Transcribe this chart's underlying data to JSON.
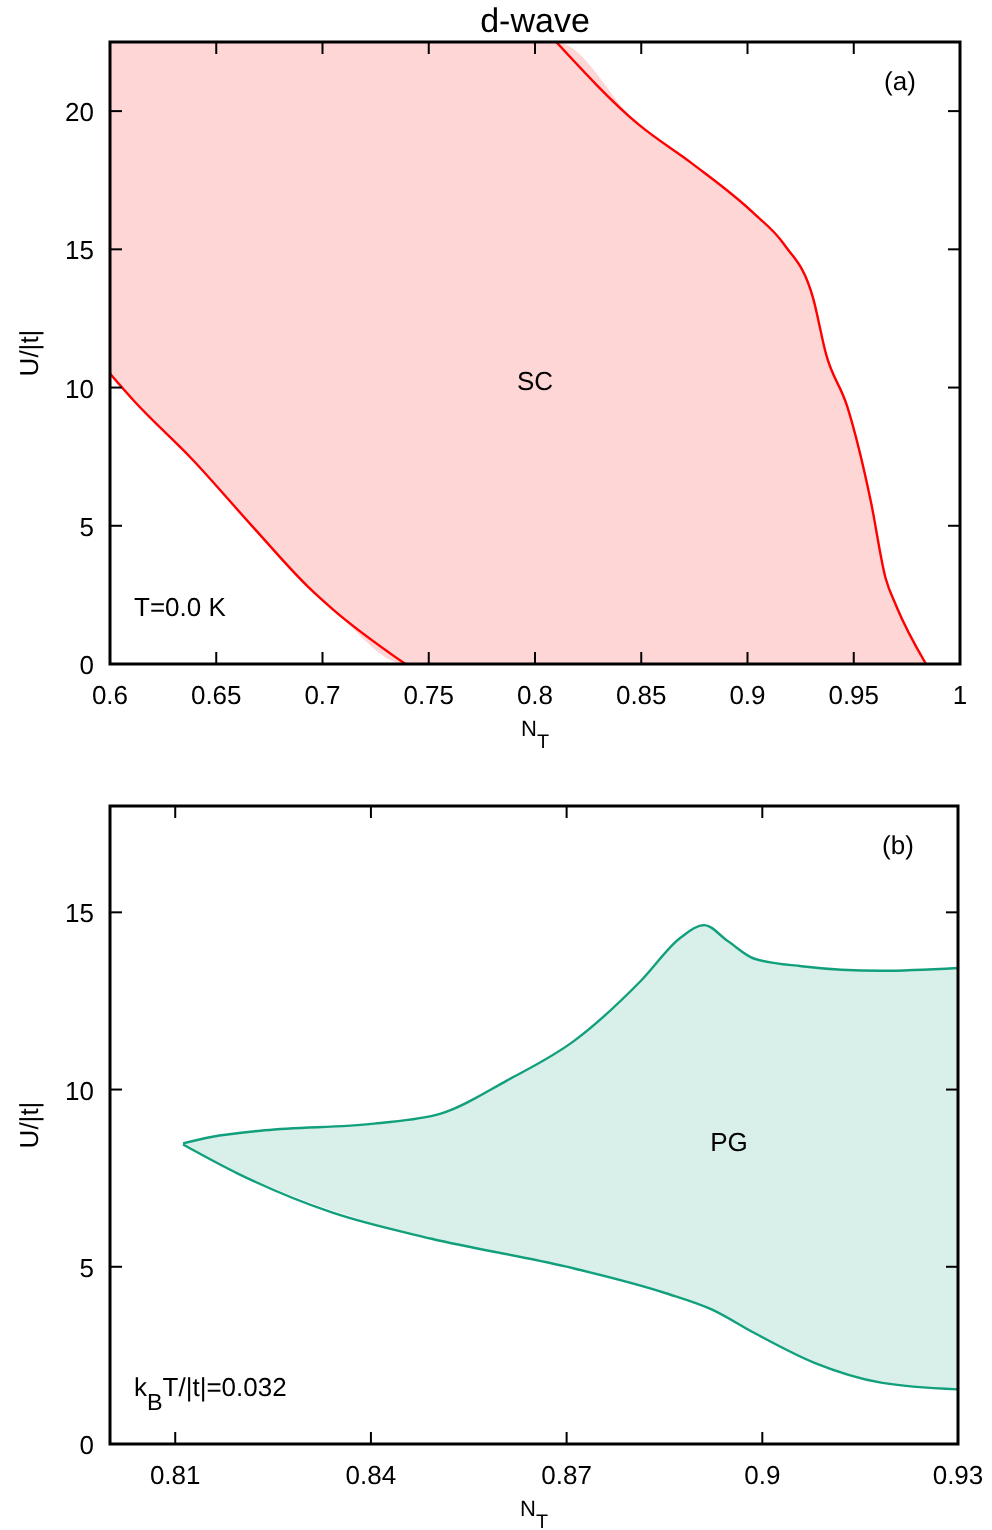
{
  "chart_data": [
    {
      "type": "line",
      "title": "d-wave",
      "xlabel": "N$_{T}$",
      "ylabel": "U/|t|",
      "xlim": [
        0.6,
        1
      ],
      "ylim": [
        0,
        22.5
      ],
      "xticks": [
        0.6,
        0.65,
        0.7,
        0.75,
        0.8,
        0.85,
        0.9,
        0.95,
        1
      ],
      "yticks": [
        0,
        5,
        10,
        15,
        20
      ],
      "grid": false,
      "annotations": [
        "(a)",
        "T=0.0 K",
        "SC"
      ],
      "series": [
        {
          "type": "line",
          "color": "#ff0000",
          "x": [
            0.6,
            0.611,
            0.639,
            0.667,
            0.693,
            0.705,
            0.739,
            0.81,
            0.849,
            0.874,
            0.903,
            0.917,
            0.931,
            0.937,
            0.947,
            0.958,
            0.965,
            0.97,
            0.984
          ],
          "values": [
            null,
            null,
            null,
            null,
            null,
            null,
            null,
            22.5,
            19.5,
            18.1,
            16.3,
            15.2,
            13.2,
            11.2,
            9.3,
            5.9,
            3.1,
            2.1,
            0
          ],
          "lower": [
            10.5,
            9.54,
            7.38,
            4.98,
            2.81,
            1.97,
            0,
            0,
            0,
            0,
            0,
            0,
            0,
            0,
            0,
            0,
            0,
            0,
            0
          ],
          "upper": [
            22.5,
            22.5,
            22.5,
            22.5,
            22.5,
            22.5,
            22.5,
            22.5,
            19.5,
            18.1,
            16.3,
            15.2,
            13.2,
            11.2,
            9.3,
            5.9,
            3.1,
            2.1,
            0
          ]
        },
        {
          "type": "line",
          "color": "#ff0000",
          "x": [
            0.6,
            0.611,
            0.639,
            0.667,
            0.693,
            0.705,
            0.739
          ],
          "values": [
            10.5,
            9.54,
            7.38,
            4.98,
            2.81,
            1.97,
            0
          ]
        }
      ]
    },
    {
      "type": "line",
      "xlabel": "N$_{T}$",
      "ylabel": "U/|t|",
      "xlim": [
        0.8,
        0.93
      ],
      "ylim": [
        0,
        18
      ],
      "xticks": [
        0.81,
        0.84,
        0.87,
        0.9,
        0.93
      ],
      "yticks": [
        0,
        5,
        10,
        15
      ],
      "grid": false,
      "annotations": [
        "(b)",
        "k$_{B}$T/|t|=0.032",
        "PG"
      ],
      "series": [
        {
          "type": "line",
          "color": "#12a07c",
          "x": [
            0.8112,
            0.8155,
            0.8237,
            0.8405,
            0.8507,
            0.8609,
            0.8712,
            0.8814,
            0.8875,
            0.8911,
            0.8947,
            0.8988,
            0.906,
            0.9182,
            0.93
          ],
          "values": [
            8.48,
            8.66,
            8.85,
            9.04,
            9.32,
            10.26,
            11.38,
            13.07,
            14.29,
            14.64,
            14.19,
            13.69,
            13.48,
            13.35,
            13.43
          ],
          "lower": [
            8.45,
            8.03,
            7.32,
            6.22,
            5.74,
            5.35,
            4.94,
            4.44,
            4.1,
            3.87,
            3.55,
            3.13,
            2.47,
            1.73,
            1.54
          ],
          "upper": [
            8.48,
            8.66,
            8.85,
            9.04,
            9.32,
            10.26,
            11.38,
            13.07,
            14.29,
            14.64,
            14.19,
            13.69,
            13.48,
            13.35,
            13.43
          ]
        },
        {
          "type": "line",
          "color": "#12a07c",
          "x": [
            0.8112,
            0.8196,
            0.8339,
            0.8493,
            0.8698,
            0.8851,
            0.8923,
            0.8988,
            0.908,
            0.9182,
            0.93
          ],
          "values": [
            8.45,
            7.63,
            6.54,
            5.79,
            5.01,
            4.26,
            3.79,
            3.13,
            2.29,
            1.73,
            1.54
          ]
        }
      ]
    }
  ]
}
